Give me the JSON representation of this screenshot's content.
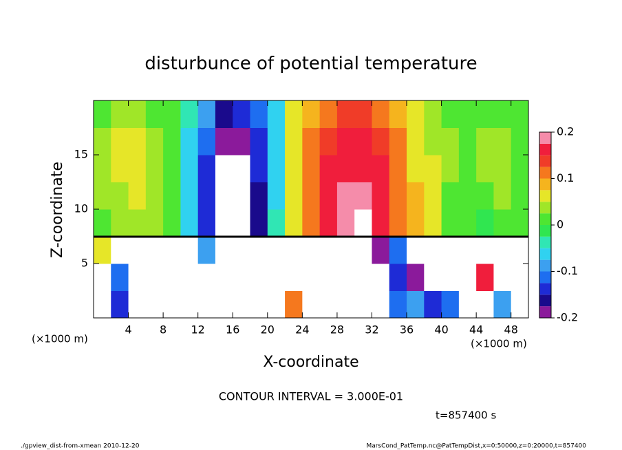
{
  "chart_data": {
    "type": "contour",
    "title": "disturbunce of potential temperature",
    "x_label": "X-coordinate",
    "y_label": "Z-coordinate",
    "x_unit": "(×1000 m)",
    "x": [
      1,
      3,
      5,
      7,
      9,
      11,
      13,
      15,
      17,
      19,
      21,
      23,
      25,
      27,
      29,
      31,
      33,
      35,
      37,
      39,
      41,
      43,
      45,
      47,
      49
    ],
    "y": [
      1.25,
      3.75,
      6.25,
      8.75,
      11.25,
      13.75,
      16.25,
      18.75
    ],
    "z": [
      [
        0.3,
        -0.15,
        0.3,
        0.3,
        0.3,
        0.3,
        0.3,
        0.3,
        0.3,
        0.3,
        0.3,
        0.12,
        0.3,
        0.3,
        0.3,
        0.3,
        0.3,
        -0.12,
        -0.1,
        -0.15,
        -0.12,
        0.3,
        0.3,
        -0.1,
        0.3
      ],
      [
        0.3,
        -0.12,
        0.3,
        0.3,
        0.3,
        0.3,
        0.3,
        0.3,
        0.3,
        0.3,
        0.3,
        0.3,
        0.3,
        0.3,
        0.3,
        0.3,
        0.3,
        -0.15,
        -0.2,
        0.3,
        0.3,
        0.3,
        0.15,
        0.3,
        0.3
      ],
      [
        0.05,
        0.3,
        0.3,
        0.3,
        0.3,
        0.3,
        -0.08,
        0.3,
        0.3,
        0.3,
        0.3,
        0.3,
        0.3,
        0.3,
        0.3,
        0.3,
        -0.18,
        -0.12,
        0.3,
        0.3,
        0.3,
        0.3,
        0.3,
        0.3,
        0.3
      ],
      [
        0.02,
        0.03,
        0.04,
        0.03,
        0,
        -0.07,
        -0.14,
        -0.25,
        -0.25,
        -0.17,
        -0.05,
        0.07,
        0.12,
        0.16,
        0.19,
        0.21,
        0.17,
        0.12,
        0.08,
        0.05,
        0.02,
        0,
        -0.02,
        0.01,
        0.02
      ],
      [
        0.03,
        0.04,
        0.05,
        0.04,
        0,
        -0.06,
        -0.13,
        -0.25,
        -0.25,
        -0.16,
        -0.06,
        0.06,
        0.11,
        0.16,
        0.18,
        0.18,
        0.16,
        0.12,
        0.08,
        0.05,
        0.02,
        0.01,
        0.02,
        0.03,
        0.02
      ],
      [
        0.04,
        0.05,
        0.05,
        0.04,
        0.01,
        -0.06,
        -0.13,
        -0.25,
        -0.24,
        -0.15,
        -0.06,
        0.06,
        0.11,
        0.15,
        0.17,
        0.17,
        0.15,
        0.11,
        0.07,
        0.05,
        0.03,
        0.02,
        0.03,
        0.04,
        0.02
      ],
      [
        0.04,
        0.05,
        0.05,
        0.04,
        0.01,
        -0.06,
        -0.12,
        -0.19,
        -0.18,
        -0.13,
        -0.06,
        0.05,
        0.1,
        0.14,
        0.16,
        0.15,
        0.14,
        0.1,
        0.06,
        0.04,
        0.03,
        0.02,
        0.03,
        0.04,
        0.02
      ],
      [
        0.02,
        0.03,
        0.03,
        0.02,
        0,
        -0.05,
        -0.1,
        -0.16,
        -0.15,
        -0.12,
        -0.06,
        0.05,
        0.09,
        0.12,
        0.14,
        0.13,
        0.12,
        0.08,
        0.05,
        0.03,
        0.02,
        0.01,
        0.01,
        0.02,
        0.01
      ]
    ],
    "xlim": [
      0,
      50
    ],
    "ylim": [
      0,
      20
    ],
    "xticks": [
      4,
      8,
      12,
      16,
      20,
      24,
      28,
      32,
      36,
      40,
      44,
      48
    ],
    "yticks": [
      5,
      10,
      15
    ],
    "colorbar": {
      "levels": [
        -0.2,
        -0.175,
        -0.15,
        -0.125,
        -0.1,
        -0.075,
        -0.05,
        -0.025,
        0,
        0.025,
        0.05,
        0.075,
        0.1,
        0.125,
        0.15,
        0.175,
        0.2
      ],
      "colors": [
        "#8b1a9b",
        "#1a0a8c",
        "#1e2bd6",
        "#1e6ef0",
        "#3ca0f0",
        "#30d2f0",
        "#30e6b4",
        "#30e650",
        "#4ee632",
        "#a0e628",
        "#e6e628",
        "#f5b41e",
        "#f5781e",
        "#f03c28",
        "#f01e3c",
        "#f58caa"
      ],
      "ticks": [
        -0.2,
        -0.1,
        0,
        0.1,
        0.2
      ]
    },
    "contour_interval": "CONTOUR INTERVAL = 3.000E-01",
    "time": "t=857400 s",
    "footer_left": "./gpview_dist-from-xmean  2010-12-20",
    "footer_right": "MarsCond_PatTemp.nc@PatTempDist,x=0:50000,z=0:20000,t=857400"
  }
}
